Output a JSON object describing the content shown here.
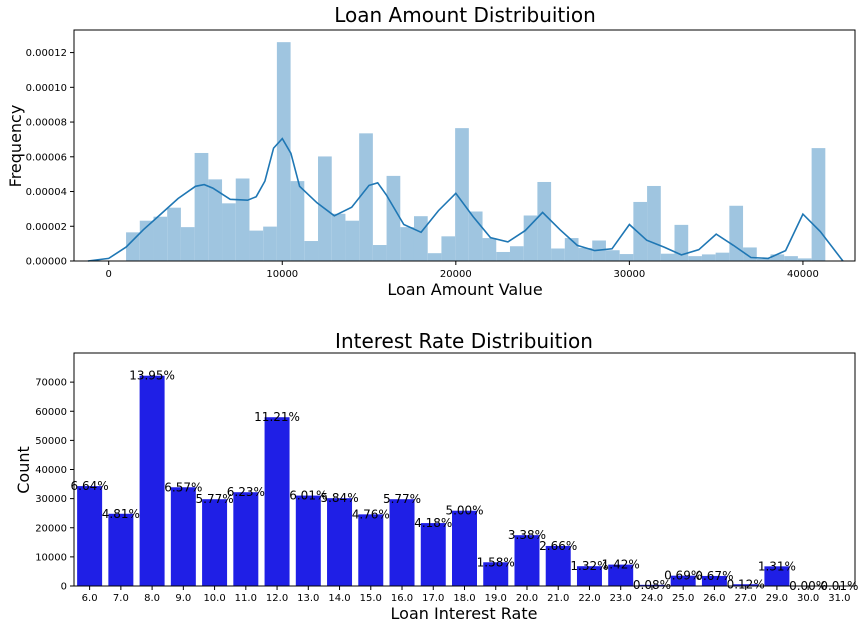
{
  "chart_data": [
    {
      "type": "bar",
      "title": "Loan Amount Distribuition",
      "xlabel": "Loan Amount Value",
      "ylabel": "Frequency",
      "xlim": [
        -2000,
        43000
      ],
      "ylim": [
        0,
        0.000133
      ],
      "xticks": [
        0,
        10000,
        20000,
        30000,
        40000
      ],
      "yticks": [
        0,
        2e-05,
        4e-05,
        6e-05,
        8e-05,
        0.0001,
        0.00012
      ],
      "ytick_labels": [
        "0.00000",
        "0.00002",
        "0.00004",
        "0.00006",
        "0.00008",
        "0.00010",
        "0.00012"
      ],
      "hist": {
        "bin_start": 1000,
        "bin_width": 790,
        "values": [
          1.65e-05,
          2.32e-05,
          2.55e-05,
          3.07e-05,
          1.95e-05,
          6.22e-05,
          4.7e-05,
          3.32e-05,
          4.75e-05,
          1.75e-05,
          1.98e-05,
          0.000126,
          4.6e-05,
          1.15e-05,
          6.02e-05,
          2.72e-05,
          2.32e-05,
          7.35e-05,
          9.2e-06,
          4.9e-05,
          1.95e-05,
          2.58e-05,
          4.5e-06,
          1.42e-05,
          7.65e-05,
          2.85e-05,
          1.32e-05,
          5.2e-06,
          8.5e-06,
          2.62e-05,
          4.55e-05,
          7.2e-06,
          1.32e-05,
          7.5e-06,
          1.18e-05,
          6.2e-06,
          4e-06,
          3.4e-05,
          4.32e-05,
          4.2e-06,
          2.08e-05,
          2.8e-06,
          3.8e-06,
          4.8e-06,
          3.18e-05,
          7.8e-06,
          1.2e-06,
          3.8e-06,
          2.8e-06,
          1.5e-06,
          6.5e-05
        ],
        "color": "#9fc5e0"
      },
      "kde": {
        "x": [
          -1200,
          0,
          1000,
          2000,
          3000,
          4000,
          5000,
          5500,
          6000,
          7000,
          8000,
          8500,
          9000,
          9500,
          10000,
          10500,
          11000,
          12000,
          13000,
          14000,
          15000,
          15500,
          16000,
          17000,
          18000,
          19000,
          20000,
          21000,
          22000,
          23000,
          24000,
          25000,
          26000,
          27000,
          28000,
          29000,
          30000,
          31000,
          32000,
          33000,
          34000,
          35000,
          36000,
          37000,
          38000,
          39000,
          40000,
          41000,
          42300
        ],
        "y": [
          0,
          1.5e-06,
          8e-06,
          1.8e-05,
          2.7e-05,
          3.6e-05,
          4.3e-05,
          4.4e-05,
          4.2e-05,
          3.55e-05,
          3.5e-05,
          3.7e-05,
          4.6e-05,
          6.5e-05,
          7.05e-05,
          6.2e-05,
          4.3e-05,
          3.35e-05,
          2.6e-05,
          3.1e-05,
          4.35e-05,
          4.5e-05,
          3.8e-05,
          2.1e-05,
          1.65e-05,
          2.9e-05,
          3.9e-05,
          2.55e-05,
          1.35e-05,
          1.1e-05,
          1.75e-05,
          2.8e-05,
          1.8e-05,
          9e-06,
          6e-06,
          7e-06,
          2.1e-05,
          1.2e-05,
          8e-06,
          3.5e-06,
          6.5e-06,
          1.55e-05,
          9e-06,
          2e-06,
          1.5e-06,
          6e-06,
          2.7e-05,
          1.7e-05,
          0
        ],
        "color": "#1f77b4"
      }
    },
    {
      "type": "bar",
      "title": "Interest Rate Distribuition",
      "xlabel": "Loan Interest Rate",
      "ylabel": "Count",
      "ylim": [
        0,
        80000
      ],
      "yticks": [
        0,
        10000,
        20000,
        30000,
        40000,
        50000,
        60000,
        70000
      ],
      "categories": [
        "6.0",
        "7.0",
        "8.0",
        "9.0",
        "10.0",
        "11.0",
        "12.0",
        "13.0",
        "14.0",
        "15.0",
        "16.0",
        "17.0",
        "18.0",
        "19.0",
        "20.0",
        "21.0",
        "22.0",
        "23.0",
        "24.0",
        "25.0",
        "26.0",
        "27.0",
        "29.0",
        "30.0",
        "31.0"
      ],
      "values": [
        34300,
        24800,
        72200,
        33900,
        29800,
        32200,
        57950,
        31050,
        30150,
        24600,
        29800,
        21600,
        25850,
        8150,
        17450,
        13750,
        6800,
        7350,
        400,
        3550,
        3450,
        600,
        6750,
        10,
        40
      ],
      "labels": [
        "6.64%",
        "4.81%",
        "13.95%",
        "6.57%",
        "5.77%",
        "6.23%",
        "11.21%",
        "6.01%",
        "5.84%",
        "4.76%",
        "5.77%",
        "4.18%",
        "5.00%",
        "1.58%",
        "3.38%",
        "2.66%",
        "1.32%",
        "1.42%",
        "0.08%",
        "0.69%",
        "0.67%",
        "0.12%",
        "1.31%",
        "0.00%",
        "0.01%"
      ],
      "color": "#1f1fe6"
    }
  ]
}
